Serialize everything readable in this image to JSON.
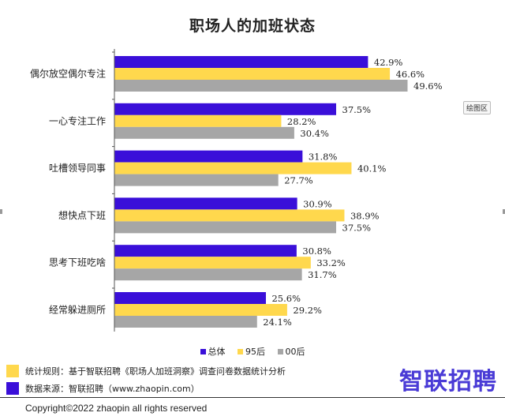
{
  "chart_data": {
    "type": "bar",
    "orientation": "horizontal",
    "title": "职场人的加班状态",
    "categories": [
      "偶尔放空偶尔专注",
      "一心专注工作",
      "吐槽领导同事",
      "想快点下班",
      "思考下班吃啥",
      "经常躲进厕所"
    ],
    "series": [
      {
        "name": "总体",
        "color": "#3a0fd9",
        "values": [
          42.9,
          37.5,
          31.8,
          30.9,
          30.8,
          25.6
        ],
        "labels": [
          "42.9%",
          "37.5%",
          "31.8%",
          "30.9%",
          "30.8%",
          "25.6%"
        ]
      },
      {
        "name": "95后",
        "color": "#ffd84d",
        "values": [
          46.6,
          28.2,
          40.1,
          38.9,
          33.2,
          29.2
        ],
        "labels": [
          "46.6%",
          "28.2%",
          "40.1%",
          "38.9%",
          "33.2%",
          "29.2%"
        ]
      },
      {
        "name": "00后",
        "color": "#a6a6a6",
        "values": [
          49.6,
          30.4,
          27.7,
          37.5,
          31.7,
          24.1
        ],
        "labels": [
          "49.6%",
          "30.4%",
          "27.7%",
          "37.5%",
          "31.7%",
          "24.1%"
        ]
      }
    ],
    "xlim": [
      0,
      50
    ],
    "grid": false,
    "legend_position": "bottom"
  },
  "plot_area_label": "绘图区",
  "notes": [
    {
      "color": "#ffd84d",
      "text": "统计规则：基于智联招聘《职场人加班洞察》调查问卷数据统计分析"
    },
    {
      "color": "#3a0fd9",
      "text": "数据来源：智联招聘（www.zhaopin.com）"
    }
  ],
  "brand": "智联招聘",
  "copyright": "Copyright©2022 zhaopin all rights reserved"
}
